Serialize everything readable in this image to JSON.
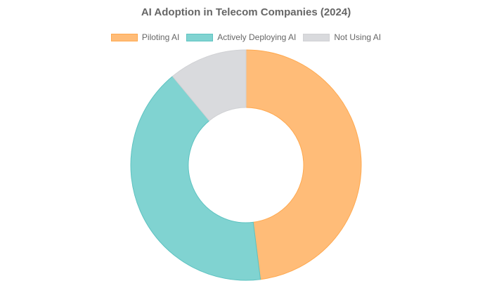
{
  "chart_data": {
    "type": "pie",
    "variant": "doughnut",
    "title": "AI Adoption in Telecom Companies (2024)",
    "categories": [
      "Piloting AI",
      "Actively Deploying AI",
      "Not Using AI"
    ],
    "values": [
      48,
      41,
      11
    ],
    "colors": [
      "#FFBC78",
      "#80D3D1",
      "#D9DADD"
    ],
    "border_colors": [
      "#FFA94F",
      "#5EC3C1",
      "#D0D1D4"
    ],
    "legend_position": "top",
    "start_angle": "top",
    "direction": "clockwise"
  }
}
